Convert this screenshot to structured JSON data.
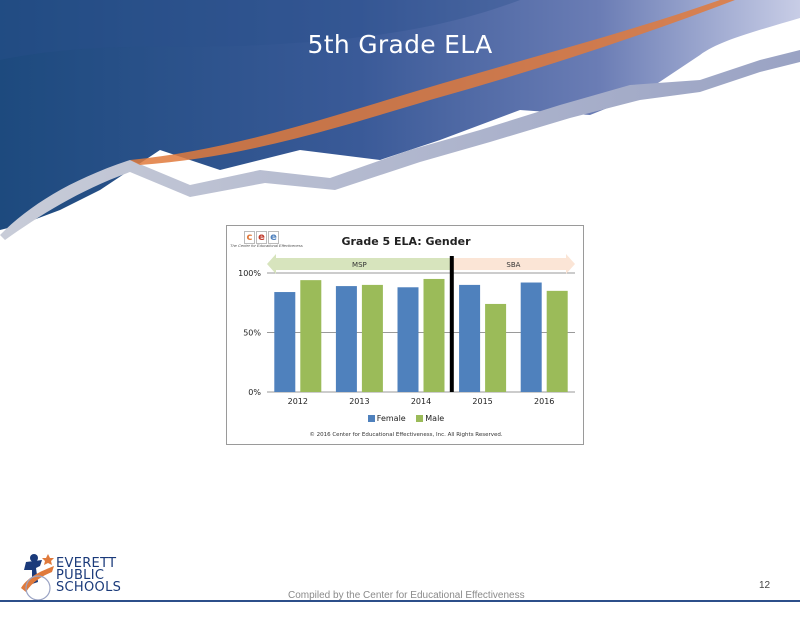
{
  "slide": {
    "title": "5th Grade ELA",
    "page_number": "12",
    "footer_text": "Compiled by the Center for Educational Effectiveness"
  },
  "logo": {
    "line1": "EVERETT",
    "line2": "PUBLIC",
    "line3": "SCHOOLS"
  },
  "cee": {
    "letters": [
      "c",
      "e",
      "e"
    ],
    "subtitle": "The Center for Educational Effectiveness"
  },
  "chart_data": {
    "type": "bar",
    "title": "Grade 5 ELA: Gender",
    "categories": [
      "2012",
      "2013",
      "2014",
      "2015",
      "2016"
    ],
    "series": [
      {
        "name": "Female",
        "color": "#4f81bd",
        "values": [
          84,
          89,
          88,
          90,
          92
        ]
      },
      {
        "name": "Male",
        "color": "#9bbb59",
        "values": [
          94,
          90,
          95,
          74,
          85
        ]
      }
    ],
    "ylim": [
      0,
      100
    ],
    "yticks": [
      {
        "value": 0,
        "label": "0%"
      },
      {
        "value": 50,
        "label": "50%"
      },
      {
        "value": 100,
        "label": "100%"
      }
    ],
    "test_periods": [
      {
        "label": "MSP",
        "from": "2012",
        "to": "2014",
        "color": "#d7e4bd"
      },
      {
        "label": "SBA",
        "from": "2015",
        "to": "2016",
        "color": "#fbe5d6"
      }
    ],
    "divider_between": [
      "2014",
      "2015"
    ],
    "legend_position": "bottom",
    "grid": true,
    "copyright": "© 2016 Center for Educational Effectiveness, Inc. All Rights Reserved."
  },
  "colors": {
    "header_dark": "#1f4a7e",
    "header_mid": "#5a6fa8",
    "accent_orange": "#e07a3c"
  }
}
